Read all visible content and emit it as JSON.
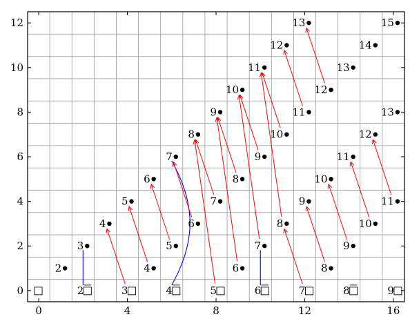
{
  "chart_data": {
    "type": "scatter",
    "grid": true,
    "xlim": [
      -0.5,
      16.5
    ],
    "ylim": [
      -0.5,
      12.5
    ],
    "x_ticks": [
      {
        "v": 0,
        "t": "0"
      },
      {
        "v": 4,
        "t": "4"
      },
      {
        "v": 8,
        "t": "8"
      },
      {
        "v": 12,
        "t": "12"
      },
      {
        "v": 16,
        "t": "16"
      }
    ],
    "y_ticks": [
      {
        "v": 0,
        "t": "0"
      },
      {
        "v": 2,
        "t": "2"
      },
      {
        "v": 4,
        "t": "4"
      },
      {
        "v": 6,
        "t": "6"
      },
      {
        "v": 8,
        "t": "8"
      },
      {
        "v": 10,
        "t": "10"
      },
      {
        "v": 12,
        "t": "12"
      }
    ],
    "points": [
      {
        "x": 0,
        "y": 0,
        "label": "",
        "mark": "box"
      },
      {
        "x": 2,
        "y": 0,
        "label": "2",
        "mark": "boxbar"
      },
      {
        "x": 4,
        "y": 0,
        "label": "3",
        "mark": "box"
      },
      {
        "x": 6,
        "y": 0,
        "label": "4",
        "mark": "boxbar"
      },
      {
        "x": 8,
        "y": 0,
        "label": "5",
        "mark": "box"
      },
      {
        "x": 10,
        "y": 0,
        "label": "6",
        "mark": "boxbar"
      },
      {
        "x": 12,
        "y": 0,
        "label": "7",
        "mark": "box"
      },
      {
        "x": 14,
        "y": 0,
        "label": "8",
        "mark": "boxbar"
      },
      {
        "x": 16,
        "y": 0,
        "label": "9",
        "mark": "box"
      },
      {
        "x": 1,
        "y": 1,
        "label": "2",
        "mark": "dot"
      },
      {
        "x": 5,
        "y": 1,
        "label": "4",
        "mark": "dot"
      },
      {
        "x": 9,
        "y": 1,
        "label": "6",
        "mark": "dot"
      },
      {
        "x": 13,
        "y": 1,
        "label": "8",
        "mark": "dot"
      },
      {
        "x": 2,
        "y": 2,
        "label": "3",
        "mark": "dot"
      },
      {
        "x": 6,
        "y": 2,
        "label": "5",
        "mark": "dot"
      },
      {
        "x": 10,
        "y": 2,
        "label": "7",
        "mark": "dot"
      },
      {
        "x": 14,
        "y": 2,
        "label": "9",
        "mark": "dot"
      },
      {
        "x": 3,
        "y": 3,
        "label": "4",
        "mark": "dot"
      },
      {
        "x": 7,
        "y": 3,
        "label": "6",
        "mark": "dot"
      },
      {
        "x": 11,
        "y": 3,
        "label": "8",
        "mark": "dot"
      },
      {
        "x": 15,
        "y": 3,
        "label": "10",
        "mark": "dot"
      },
      {
        "x": 4,
        "y": 4,
        "label": "5",
        "mark": "dot"
      },
      {
        "x": 8,
        "y": 4,
        "label": "7",
        "mark": "dot"
      },
      {
        "x": 12,
        "y": 4,
        "label": "9",
        "mark": "dot"
      },
      {
        "x": 16,
        "y": 4,
        "label": "11",
        "mark": "dot"
      },
      {
        "x": 5,
        "y": 5,
        "label": "6",
        "mark": "dot"
      },
      {
        "x": 9,
        "y": 5,
        "label": "8",
        "mark": "dot"
      },
      {
        "x": 13,
        "y": 5,
        "label": "10",
        "mark": "dot"
      },
      {
        "x": 6,
        "y": 6,
        "label": "7",
        "mark": "dot"
      },
      {
        "x": 10,
        "y": 6,
        "label": "9",
        "mark": "dot"
      },
      {
        "x": 14,
        "y": 6,
        "label": "11",
        "mark": "dot"
      },
      {
        "x": 7,
        "y": 7,
        "label": "8",
        "mark": "dot"
      },
      {
        "x": 11,
        "y": 7,
        "label": "10",
        "mark": "dot"
      },
      {
        "x": 15,
        "y": 7,
        "label": "12",
        "mark": "dot"
      },
      {
        "x": 8,
        "y": 8,
        "label": "9",
        "mark": "dot"
      },
      {
        "x": 12,
        "y": 8,
        "label": "11",
        "mark": "dot"
      },
      {
        "x": 16,
        "y": 8,
        "label": "13",
        "mark": "dot"
      },
      {
        "x": 9,
        "y": 9,
        "label": "10",
        "mark": "dot"
      },
      {
        "x": 13,
        "y": 9,
        "label": "12",
        "mark": "dot"
      },
      {
        "x": 10,
        "y": 10,
        "label": "11",
        "mark": "dot"
      },
      {
        "x": 14,
        "y": 10,
        "label": "13",
        "mark": "dot"
      },
      {
        "x": 11,
        "y": 11,
        "label": "12",
        "mark": "dot"
      },
      {
        "x": 15,
        "y": 11,
        "label": "14",
        "mark": "dot"
      },
      {
        "x": 12,
        "y": 12,
        "label": "13",
        "mark": "dot"
      },
      {
        "x": 16,
        "y": 12,
        "label": "15",
        "mark": "dot"
      }
    ],
    "red_arrows": [
      {
        "from": [
          4,
          0
        ],
        "to": [
          3,
          3
        ]
      },
      {
        "from": [
          5,
          1
        ],
        "to": [
          4,
          4
        ]
      },
      {
        "from": [
          6,
          2
        ],
        "to": [
          5,
          5
        ]
      },
      {
        "from": [
          7,
          3
        ],
        "to": [
          6,
          6
        ]
      },
      {
        "from": [
          8,
          4
        ],
        "to": [
          7,
          7
        ]
      },
      {
        "from": [
          9,
          5
        ],
        "to": [
          8,
          8
        ]
      },
      {
        "from": [
          10,
          6
        ],
        "to": [
          9,
          9
        ]
      },
      {
        "from": [
          11,
          7
        ],
        "to": [
          10,
          10
        ]
      },
      {
        "from": [
          12,
          8
        ],
        "to": [
          11,
          11
        ]
      },
      {
        "from": [
          13,
          9
        ],
        "to": [
          12,
          12
        ]
      },
      {
        "from": [
          8,
          0
        ],
        "to": [
          7,
          7
        ]
      },
      {
        "from": [
          9,
          1
        ],
        "to": [
          8,
          8
        ]
      },
      {
        "from": [
          10,
          2
        ],
        "to": [
          9,
          9
        ]
      },
      {
        "from": [
          11,
          3
        ],
        "to": [
          10,
          10
        ]
      },
      {
        "from": [
          12,
          0
        ],
        "to": [
          11,
          3
        ]
      },
      {
        "from": [
          13,
          1
        ],
        "to": [
          12,
          4
        ]
      },
      {
        "from": [
          14,
          2
        ],
        "to": [
          13,
          5
        ]
      },
      {
        "from": [
          15,
          3
        ],
        "to": [
          14,
          6
        ]
      },
      {
        "from": [
          16,
          4
        ],
        "to": [
          15,
          7
        ]
      }
    ],
    "blue_lines": [
      {
        "from": [
          2,
          0
        ],
        "to": [
          2,
          2
        ],
        "curve": 0
      },
      {
        "from": [
          6,
          0
        ],
        "to": [
          6,
          6
        ],
        "curve": 0.55
      },
      {
        "from": [
          10,
          0
        ],
        "to": [
          10,
          2
        ],
        "curve": 0
      }
    ],
    "colors": {
      "arrow": "#ff0000",
      "curve": "#0000ff",
      "grid": "#999999",
      "axis": "#000000"
    }
  }
}
